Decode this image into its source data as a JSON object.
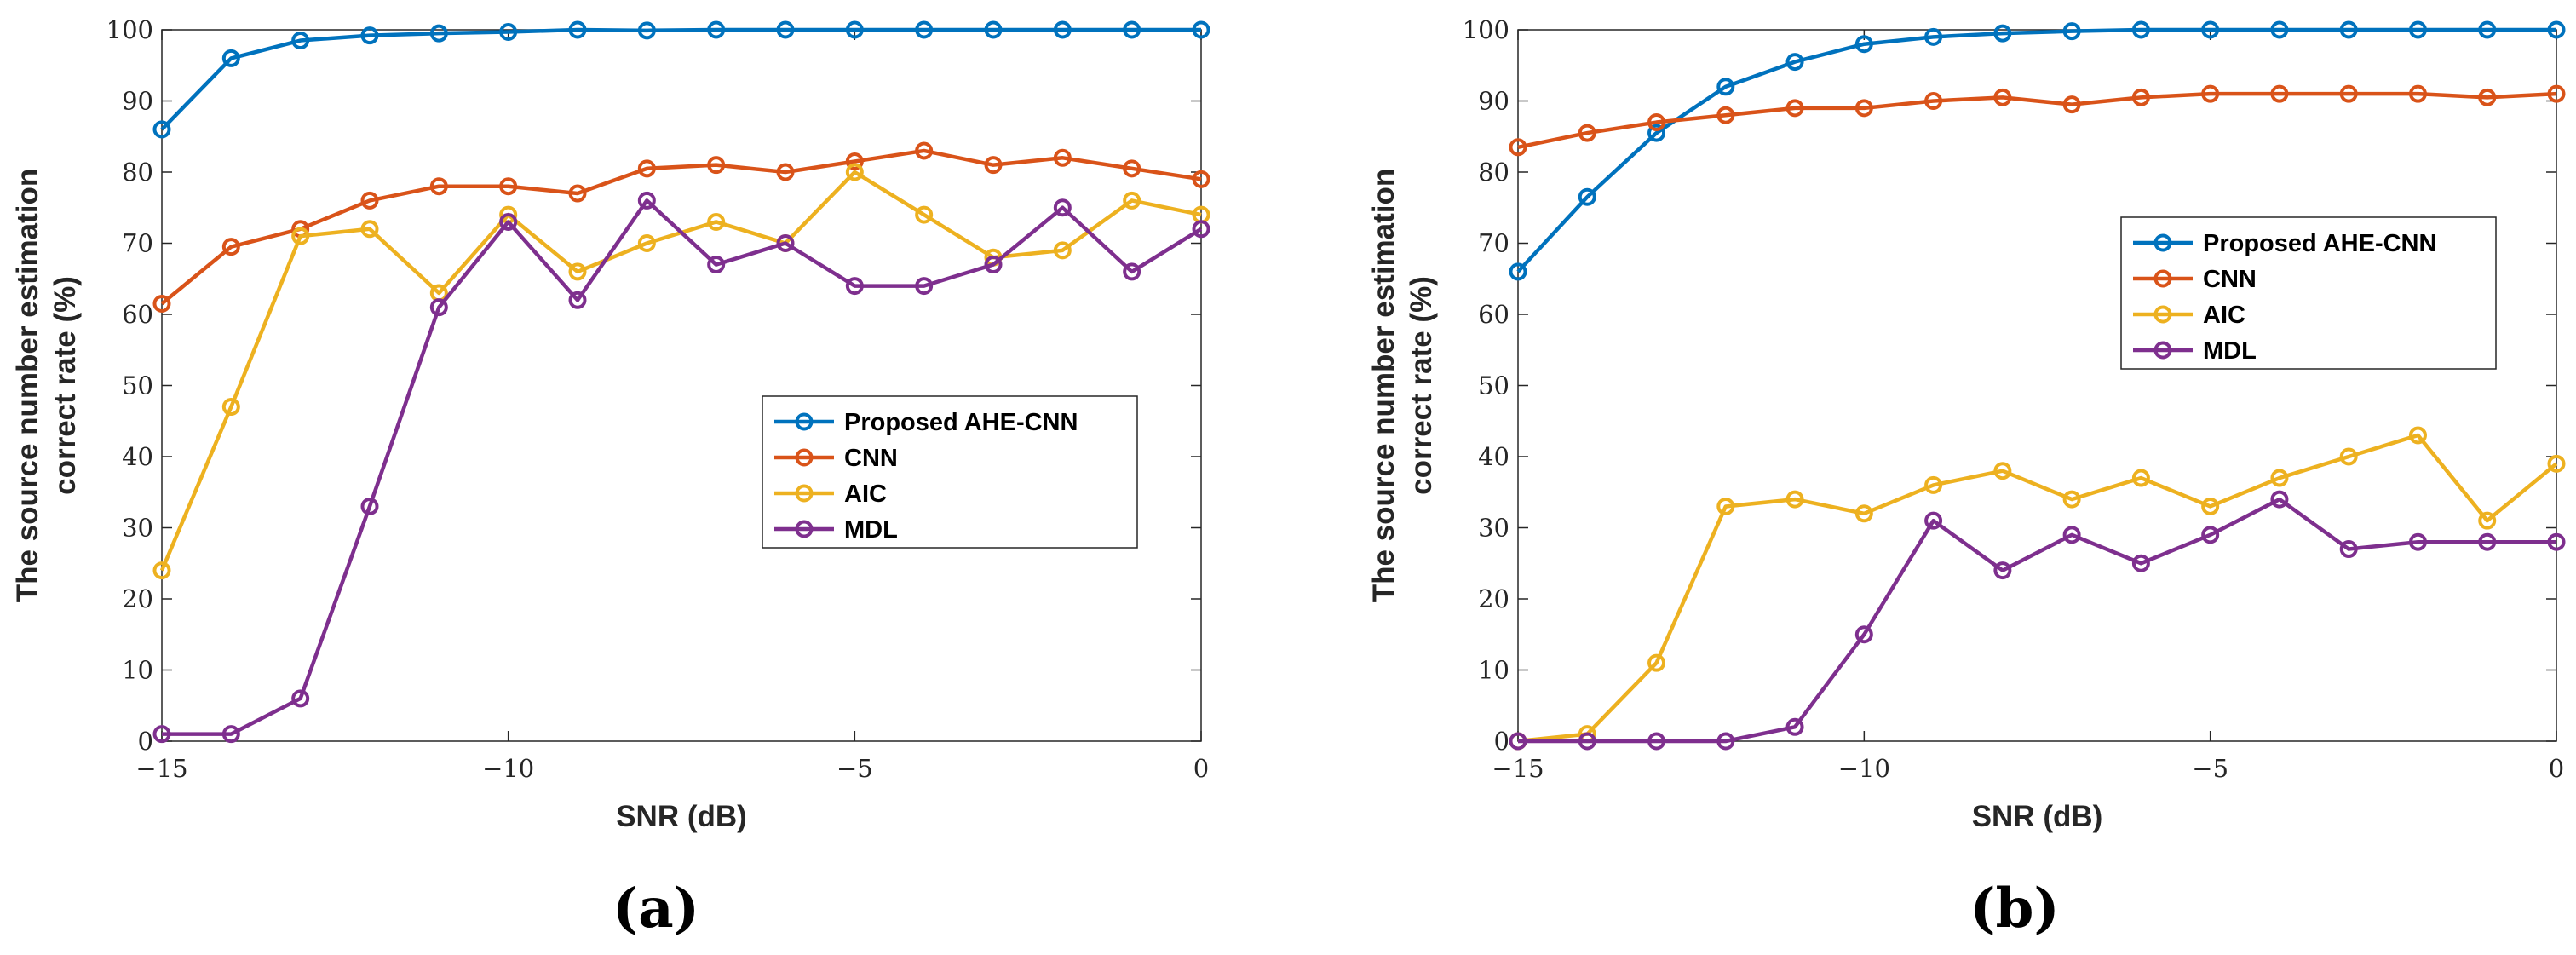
{
  "chart_data": [
    {
      "type": "line",
      "panel_label": "(a)",
      "xlabel": "SNR (dB)",
      "ylabel_lines": [
        "The source number estimation",
        "correct rate (%)"
      ],
      "xlim": [
        -15,
        0
      ],
      "ylim": [
        0,
        100
      ],
      "xticks": [
        -15,
        -10,
        -5,
        0
      ],
      "xtick_labels": [
        "−15",
        "−10",
        "−5",
        "0"
      ],
      "yticks": [
        0,
        10,
        20,
        30,
        40,
        50,
        60,
        70,
        80,
        90,
        100
      ],
      "grid": false,
      "legend_position": "center-right",
      "x": [
        -15,
        -14,
        -13,
        -12,
        -11,
        -10,
        -9,
        -8,
        -7,
        -6,
        -5,
        -4,
        -3,
        -2,
        -1,
        0
      ],
      "series": [
        {
          "name": "Proposed AHE-CNN",
          "color": "#0072BD",
          "values": [
            86,
            96,
            98.5,
            99.2,
            99.5,
            99.7,
            100,
            99.9,
            100,
            100,
            100,
            100,
            100,
            100,
            100,
            100
          ]
        },
        {
          "name": "CNN",
          "color": "#D95319",
          "values": [
            61.5,
            69.5,
            72,
            76,
            78,
            78,
            77,
            80.5,
            81,
            80,
            81.5,
            83,
            81,
            82,
            80.5,
            79
          ]
        },
        {
          "name": "AIC",
          "color": "#EDB120",
          "values": [
            24,
            47,
            71,
            72,
            63,
            74,
            66,
            70,
            73,
            70,
            80,
            74,
            68,
            69,
            76,
            74
          ]
        },
        {
          "name": "MDL",
          "color": "#7E2F8E",
          "values": [
            1,
            1,
            6,
            33,
            61,
            73,
            62,
            76,
            67,
            70,
            64,
            64,
            67,
            75,
            66,
            72
          ]
        }
      ]
    },
    {
      "type": "line",
      "panel_label": "(b)",
      "xlabel": "SNR (dB)",
      "ylabel_lines": [
        "The source number estimation",
        "correct rate (%)"
      ],
      "xlim": [
        -15,
        0
      ],
      "ylim": [
        0,
        100
      ],
      "xticks": [
        -15,
        -10,
        -5,
        0
      ],
      "xtick_labels": [
        "−15",
        "−10",
        "−5",
        "0"
      ],
      "yticks": [
        0,
        10,
        20,
        30,
        40,
        50,
        60,
        70,
        80,
        90,
        100
      ],
      "grid": false,
      "legend_position": "upper-right",
      "x": [
        -15,
        -14,
        -13,
        -12,
        -11,
        -10,
        -9,
        -8,
        -7,
        -6,
        -5,
        -4,
        -3,
        -2,
        -1,
        0
      ],
      "series": [
        {
          "name": "Proposed AHE-CNN",
          "color": "#0072BD",
          "values": [
            66,
            76.5,
            85.5,
            92,
            95.5,
            98,
            99,
            99.5,
            99.8,
            100,
            100,
            100,
            100,
            100,
            100,
            100
          ]
        },
        {
          "name": "CNN",
          "color": "#D95319",
          "values": [
            83.5,
            85.5,
            87,
            88,
            89,
            89,
            90,
            90.5,
            89.5,
            90.5,
            91,
            91,
            91,
            91,
            90.5,
            91
          ]
        },
        {
          "name": "AIC",
          "color": "#EDB120",
          "values": [
            0,
            1,
            11,
            33,
            34,
            32,
            36,
            38,
            34,
            37,
            33,
            37,
            40,
            43,
            31,
            39
          ]
        },
        {
          "name": "MDL",
          "color": "#7E2F8E",
          "values": [
            0,
            0,
            0,
            0,
            2,
            15,
            31,
            24,
            29,
            25,
            29,
            34,
            27,
            28,
            28,
            28
          ]
        }
      ]
    }
  ]
}
